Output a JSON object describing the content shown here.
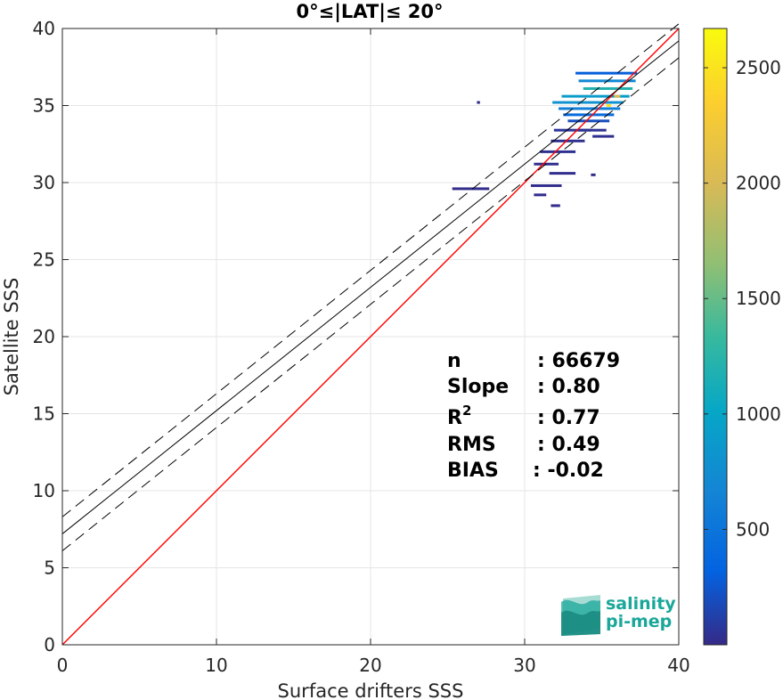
{
  "chart_data": {
    "type": "scatter",
    "title": "0°≤|LAT|≤ 20°",
    "xlabel": "Surface drifters SSS",
    "ylabel": "Satellite SSS",
    "xlim": [
      0,
      40
    ],
    "ylim": [
      0,
      40
    ],
    "xticks": [
      0,
      10,
      20,
      30,
      40
    ],
    "yticks": [
      0,
      5,
      10,
      15,
      20,
      25,
      30,
      35,
      40
    ],
    "grid": true,
    "colorbar": {
      "range": [
        0,
        2670
      ],
      "ticks": [
        500,
        1000,
        1500,
        2000,
        2500
      ],
      "colormap": "parula"
    },
    "lines": [
      {
        "role": "identity",
        "color": "#ff0000",
        "style": "solid",
        "x": [
          0,
          40
        ],
        "y": [
          0,
          40
        ]
      },
      {
        "role": "regression",
        "color": "#000000",
        "style": "solid",
        "x": [
          0,
          40
        ],
        "y": [
          7.2,
          39.2
        ]
      },
      {
        "role": "upper-bound",
        "color": "#000000",
        "style": "dashed",
        "x": [
          0,
          40
        ],
        "y": [
          8.3,
          40.3
        ]
      },
      {
        "role": "lower-bound",
        "color": "#000000",
        "style": "dashed",
        "x": [
          0,
          40
        ],
        "y": [
          6.1,
          38.1
        ]
      }
    ],
    "density_segments": [
      {
        "x1": 33.3,
        "x2": 37.3,
        "y": 37.1,
        "c": 300
      },
      {
        "x1": 33.5,
        "x2": 37.2,
        "y": 36.6,
        "c": 700
      },
      {
        "x1": 33.8,
        "x2": 37.0,
        "y": 36.1,
        "c": 1200
      },
      {
        "x1": 32.4,
        "x2": 36.8,
        "y": 35.6,
        "c": 900
      },
      {
        "x1": 31.8,
        "x2": 36.4,
        "y": 35.2,
        "c": 800
      },
      {
        "x1": 32.2,
        "x2": 36.2,
        "y": 34.8,
        "c": 600
      },
      {
        "x1": 32.5,
        "x2": 35.8,
        "y": 34.4,
        "c": 400
      },
      {
        "x1": 32.8,
        "x2": 35.5,
        "y": 34.0,
        "c": 200
      },
      {
        "x1": 31.9,
        "x2": 34.3,
        "y": 33.4,
        "c": 60
      },
      {
        "x1": 31.7,
        "x2": 33.9,
        "y": 32.7,
        "c": 40
      },
      {
        "x1": 31.0,
        "x2": 33.3,
        "y": 32.0,
        "c": 40
      },
      {
        "x1": 30.6,
        "x2": 32.2,
        "y": 31.2,
        "c": 30
      },
      {
        "x1": 31.6,
        "x2": 33.3,
        "y": 30.6,
        "c": 25
      },
      {
        "x1": 30.4,
        "x2": 32.4,
        "y": 29.8,
        "c": 20
      },
      {
        "x1": 30.6,
        "x2": 31.4,
        "y": 29.2,
        "c": 20
      },
      {
        "x1": 25.3,
        "x2": 27.7,
        "y": 29.6,
        "c": 15
      },
      {
        "x1": 31.7,
        "x2": 32.3,
        "y": 28.5,
        "c": 15
      },
      {
        "x1": 33.5,
        "x2": 35.3,
        "y": 33.4,
        "c": 40
      },
      {
        "x1": 34.4,
        "x2": 35.8,
        "y": 33.0,
        "c": 30
      },
      {
        "x1": 34.3,
        "x2": 34.6,
        "y": 30.5,
        "c": 10
      },
      {
        "x1": 26.9,
        "x2": 27.1,
        "y": 35.2,
        "c": 10
      },
      {
        "x1": 35.3,
        "x2": 35.6,
        "y": 35.0,
        "c": 2500
      },
      {
        "x1": 35.8,
        "x2": 36.2,
        "y": 35.6,
        "c": 2000
      }
    ],
    "annotations": [
      {
        "label": "n",
        "value": ": 66679"
      },
      {
        "label": "Slope",
        "value": ": 0.80"
      },
      {
        "label": "R",
        "sup": "2",
        "value": ": 0.77"
      },
      {
        "label": "RMS",
        "value": ": 0.49"
      },
      {
        "label": "BIAS",
        "value": ": -0.02"
      }
    ]
  },
  "logo": {
    "line1": "salinity",
    "line2": "pi-mep",
    "color": "#1aa79a"
  }
}
